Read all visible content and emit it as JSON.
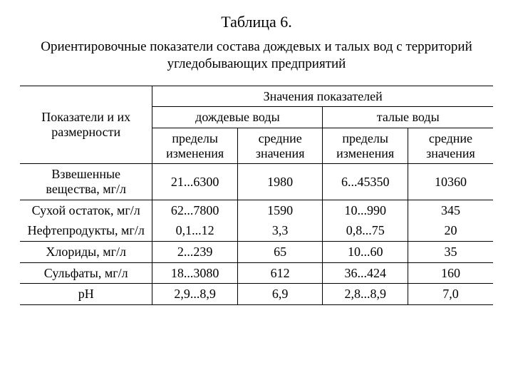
{
  "title": "Таблица 6.",
  "caption": "Ориентировочные показатели состава дождевых и талых вод с территорий угледобывающих предприятий",
  "header": {
    "params": "Показатели и их размерности",
    "values": "Значения показателей",
    "rain": "дождевые воды",
    "melt": "талые воды",
    "range": "пределы изменения",
    "avg": "средние значения"
  },
  "rows": [
    {
      "param": "Взвешенные вещества, мг/л",
      "rain_range": "21...6300",
      "rain_avg": "1980",
      "melt_range": "6...45350",
      "melt_avg": "10360"
    },
    {
      "param": "Сухой остаток, мг/л",
      "rain_range": "62...7800",
      "rain_avg": "1590",
      "melt_range": "10...990",
      "melt_avg": "345"
    },
    {
      "param": "Нефтепродукты, мг/л",
      "rain_range": "0,1...12",
      "rain_avg": "3,3",
      "melt_range": "0,8...75",
      "melt_avg": "20"
    },
    {
      "param": "Хлориды, мг/л",
      "rain_range": "2...239",
      "rain_avg": "65",
      "melt_range": "10...60",
      "melt_avg": "35"
    },
    {
      "param": "Сульфаты, мг/л",
      "rain_range": "18...3080",
      "rain_avg": "612",
      "melt_range": "36...424",
      "melt_avg": "160"
    },
    {
      "param": "pH",
      "rain_range": "2,9...8,9",
      "rain_avg": "6,9",
      "melt_range": "2,8...8,9",
      "melt_avg": "7,0"
    }
  ],
  "style": {
    "background_color": "#ffffff",
    "text_color": "#000000",
    "border_color": "#000000",
    "font_family": "Times New Roman",
    "title_fontsize": 22,
    "caption_fontsize": 19,
    "table_fontsize": 18,
    "col_widths_pct": [
      28,
      18,
      18,
      18,
      18
    ]
  }
}
